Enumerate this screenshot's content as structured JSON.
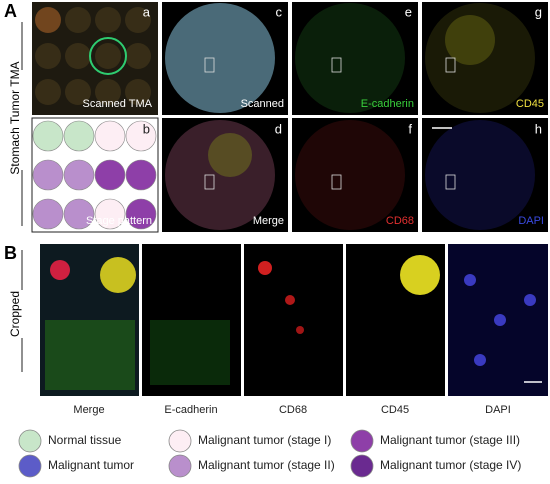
{
  "figure": {
    "part_a": {
      "label": "A",
      "row_label": "Stomach Tumor TMA",
      "panels": [
        {
          "letter": "a",
          "caption": "Scanned TMA"
        },
        {
          "letter": "b",
          "caption": "Stage pattern"
        },
        {
          "letter": "c",
          "caption": "Scanned"
        },
        {
          "letter": "d",
          "caption": "Merge"
        },
        {
          "letter": "e",
          "caption": "E-cadherin"
        },
        {
          "letter": "f",
          "caption": "CD68"
        },
        {
          "letter": "g",
          "caption": "CD45"
        },
        {
          "letter": "h",
          "caption": "DAPI"
        }
      ]
    },
    "part_b": {
      "label": "B",
      "row_label": "Cropped",
      "captions": [
        "Merge",
        "E-cadherin",
        "CD68",
        "CD45",
        "DAPI"
      ]
    },
    "legend": [
      {
        "label": "Normal tissue"
      },
      {
        "label": "Malignant tumor"
      },
      {
        "label": "Malignant tumor (stage I)"
      },
      {
        "label": "Malignant tumor (stage II)"
      },
      {
        "label": "Malignant tumor (stage III)"
      },
      {
        "label": "Malignant tumor (stage IV)"
      }
    ]
  }
}
